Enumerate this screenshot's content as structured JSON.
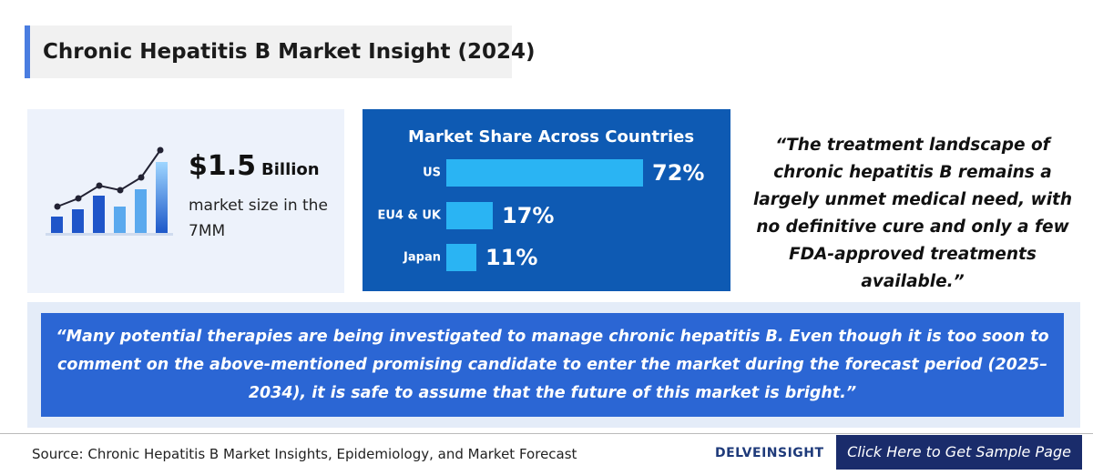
{
  "header": {
    "title": "Chronic Hepatitis B Market Insight (2024)"
  },
  "market_size": {
    "value_text": "$1.5",
    "unit": "Billion",
    "description": "market size in the 7MM"
  },
  "chart_data": {
    "type": "bar",
    "title": "Market Share Across Countries",
    "categories": [
      "US",
      "EU4 & UK",
      "Japan"
    ],
    "values": [
      72,
      17,
      11
    ],
    "value_labels": [
      "72%",
      "17%",
      "11%"
    ],
    "color": "#2ab4f3"
  },
  "quote_top": "“The treatment landscape of chronic hepatitis B remains a largely unmet medical need, with no definitive cure and only a few FDA-approved treatments available.”",
  "quote_bottom": "“Many potential therapies are being investigated to manage chronic hepatitis B. Even though it is too soon to comment on the above-mentioned promising candidate to enter the market during the forecast period (2025–2034), it is safe to assume that the future of this market is bright.”",
  "footer": {
    "source": "Source: Chronic Hepatitis B Market Insights, Epidemiology, and Market Forecast",
    "logo": "DELVEINSIGHT",
    "button": "Click Here to Get Sample Page"
  }
}
